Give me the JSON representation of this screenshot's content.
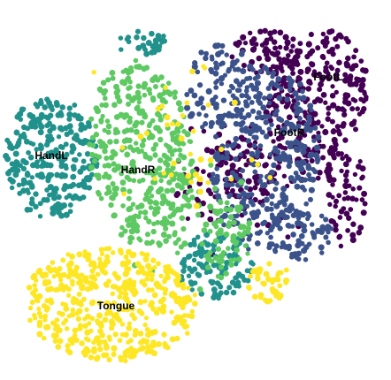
{
  "chart_data": {
    "type": "scatter",
    "title": "",
    "xlabel": "",
    "ylabel": "",
    "grid": false,
    "legend": "none",
    "axes_visible": false,
    "series": [
      {
        "name": "FootL",
        "label": "FootL",
        "color": "#440154"
      },
      {
        "name": "FootR",
        "label": "FootR",
        "color": "#3b528b"
      },
      {
        "name": "HandL",
        "label": "HandL",
        "color": "#21918c"
      },
      {
        "name": "HandR",
        "label": "HandR",
        "color": "#5ec962"
      },
      {
        "name": "Tongue",
        "label": "Tongue",
        "color": "#fde725"
      }
    ]
  }
}
